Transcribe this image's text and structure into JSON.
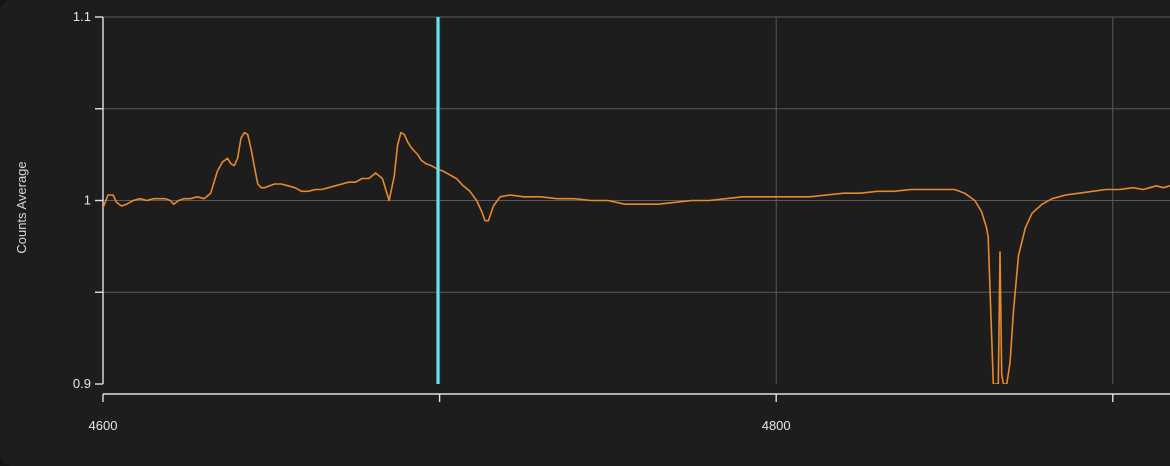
{
  "chart_data": {
    "type": "line",
    "title": "",
    "xlabel": "",
    "ylabel": "Counts Average",
    "xlim": [
      4600,
      4917
    ],
    "ylim": [
      0.9,
      1.1
    ],
    "x_ticks": [
      4600,
      4700,
      4800,
      4900
    ],
    "x_tick_labels": [
      "4600",
      "",
      "4800",
      ""
    ],
    "y_ticks": [
      0.9,
      0.95,
      1.0,
      1.05,
      1.1
    ],
    "y_tick_labels": [
      "0.9",
      "",
      "1",
      "",
      "1.1"
    ],
    "grid": true,
    "colors": {
      "series": "#e8892b",
      "cursor": "#5fe6f2",
      "grid": "#5a5a5a",
      "axis": "#e0e0e0",
      "background": "#1d1d1d"
    },
    "cursor_x": 4699.5,
    "series": [
      {
        "x": [
          4600.0,
          4601.5,
          4603.0,
          4604.0,
          4605.5,
          4607.0,
          4609.0,
          4611.0,
          4613.0,
          4615.0,
          4617.0,
          4618.5,
          4620.0,
          4621.0,
          4622.5,
          4624.0,
          4626.0,
          4628.0,
          4630.0,
          4632.0,
          4634.0,
          4635.5,
          4637.0,
          4638.0,
          4639.0,
          4640.0,
          4641.0,
          4642.0,
          4643.0,
          4644.0,
          4645.0,
          4646.0,
          4647.0,
          4648.0,
          4649.5,
          4651.0,
          4653.0,
          4655.0,
          4657.0,
          4659.0,
          4661.0,
          4663.0,
          4665.0,
          4667.0,
          4669.0,
          4671.0,
          4673.0,
          4675.0,
          4677.0,
          4679.0,
          4681.0,
          4683.0,
          4685.0,
          4686.5,
          4687.5,
          4688.5,
          4689.5,
          4690.5,
          4691.5,
          4692.5,
          4693.5,
          4694.5,
          4696.0,
          4697.5,
          4699.5,
          4701.0,
          4703.0,
          4705.0,
          4707.0,
          4709.0,
          4711.0,
          4712.5,
          4713.5,
          4714.5,
          4716.0,
          4718.0,
          4721.0,
          4725.0,
          4730.0,
          4735.0,
          4740.0,
          4745.0,
          4750.0,
          4755.0,
          4760.0,
          4765.0,
          4770.0,
          4775.0,
          4780.0,
          4785.0,
          4790.0,
          4795.0,
          4800.0,
          4805.0,
          4810.0,
          4815.0,
          4820.0,
          4825.0,
          4830.0,
          4835.0,
          4840.0,
          4845.0,
          4850.0,
          4853.0,
          4856.0,
          4859.0,
          4861.0,
          4862.5,
          4863.0,
          4864.5,
          4865.5,
          4866.0,
          4866.5,
          4867.0,
          4867.5,
          4868.0,
          4868.5,
          4869.5,
          4870.5,
          4872.0,
          4874.0,
          4876.0,
          4879.0,
          4882.0,
          4886.0,
          4890.0,
          4894.0,
          4898.0,
          4902.0,
          4906.0,
          4909.0,
          4911.0,
          4913.0,
          4915.0,
          4917.0
        ],
        "y": [
          0.996,
          1.003,
          1.003,
          0.999,
          0.997,
          0.998,
          1.0,
          1.001,
          1.0,
          1.001,
          1.001,
          1.001,
          1.0,
          0.998,
          1.0,
          1.001,
          1.001,
          1.002,
          1.001,
          1.004,
          1.016,
          1.021,
          1.023,
          1.02,
          1.019,
          1.023,
          1.034,
          1.037,
          1.036,
          1.028,
          1.018,
          1.009,
          1.007,
          1.007,
          1.008,
          1.009,
          1.009,
          1.008,
          1.007,
          1.005,
          1.005,
          1.006,
          1.006,
          1.007,
          1.008,
          1.009,
          1.01,
          1.01,
          1.012,
          1.012,
          1.015,
          1.012,
          1.0,
          1.013,
          1.03,
          1.037,
          1.036,
          1.032,
          1.029,
          1.027,
          1.025,
          1.022,
          1.02,
          1.019,
          1.017,
          1.016,
          1.014,
          1.012,
          1.008,
          1.005,
          1.0,
          0.994,
          0.989,
          0.989,
          0.997,
          1.002,
          1.003,
          1.002,
          1.002,
          1.001,
          1.001,
          1.0,
          1.0,
          0.998,
          0.998,
          0.998,
          0.999,
          1.0,
          1.0,
          1.001,
          1.002,
          1.002,
          1.002,
          1.002,
          1.002,
          1.003,
          1.004,
          1.004,
          1.005,
          1.005,
          1.006,
          1.006,
          1.006,
          1.006,
          1.004,
          1.0,
          0.994,
          0.985,
          0.98,
          0.9,
          0.9,
          0.9,
          0.972,
          0.905,
          0.9,
          0.9,
          0.9,
          0.912,
          0.94,
          0.97,
          0.985,
          0.993,
          0.998,
          1.001,
          1.003,
          1.004,
          1.005,
          1.006,
          1.006,
          1.007,
          1.006,
          1.007,
          1.008,
          1.007,
          1.008
        ]
      }
    ]
  }
}
